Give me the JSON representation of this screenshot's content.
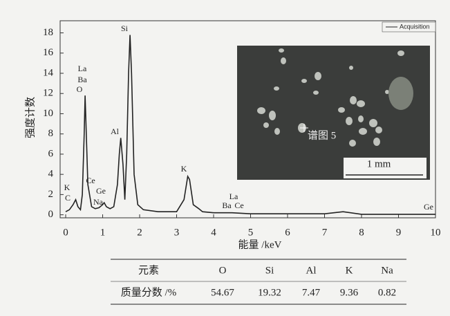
{
  "chart_data": {
    "type": "line",
    "xlabel": "能量 /keV",
    "ylabel": "强度计数",
    "x": [
      0,
      0.1,
      0.2,
      0.27,
      0.33,
      0.4,
      0.45,
      0.5,
      0.525,
      0.55,
      0.6,
      0.7,
      0.8,
      0.9,
      1.0,
      1.04,
      1.1,
      1.2,
      1.3,
      1.4,
      1.45,
      1.49,
      1.55,
      1.6,
      1.65,
      1.7,
      1.74,
      1.78,
      1.85,
      1.95,
      2.1,
      2.5,
      3.0,
      3.2,
      3.3,
      3.35,
      3.45,
      3.6,
      3.7,
      4.0,
      4.5,
      5,
      6,
      7,
      7.5,
      8,
      9,
      10
    ],
    "series": [
      {
        "name": "Acquisition",
        "color": "#222222",
        "values": [
          0.3,
          0.5,
          1.0,
          1.5,
          0.8,
          0.5,
          2,
          8,
          11.8,
          9,
          3,
          0.8,
          0.6,
          0.7,
          1.0,
          1.2,
          0.8,
          0.6,
          0.8,
          3,
          6,
          7.6,
          5,
          1.5,
          6,
          14,
          17.8,
          14,
          4,
          1,
          0.5,
          0.3,
          0.3,
          1.5,
          3.8,
          3.5,
          1,
          0.6,
          0.3,
          0.2,
          0.2,
          0.1,
          0.1,
          0.1,
          0.3,
          0.05,
          0.05,
          0.05
        ]
      }
    ],
    "xlim": [
      -0.15,
      10
    ],
    "ylim": [
      -0.3,
      19.2
    ],
    "xticks": [
      0,
      1,
      2,
      3,
      4,
      5,
      6,
      7,
      8,
      9,
      10
    ],
    "yticks": [
      0,
      2,
      4,
      6,
      8,
      10,
      12,
      14,
      16,
      18
    ],
    "annotations": [
      "K",
      "C",
      "La",
      "Ba",
      "O",
      "Ce",
      "Ge",
      "Na",
      "Si",
      "Al",
      "K",
      "La",
      "Ba",
      "Ce",
      "Ge"
    ],
    "inset": {
      "spot_label": "谱图 5",
      "scale_label": "1 mm"
    }
  },
  "table": {
    "header": [
      "元素",
      "O",
      "Si",
      "Al",
      "K",
      "Na"
    ],
    "rows": [
      [
        "质量分数 /%",
        54.67,
        19.32,
        7.47,
        9.36,
        0.82
      ]
    ]
  }
}
